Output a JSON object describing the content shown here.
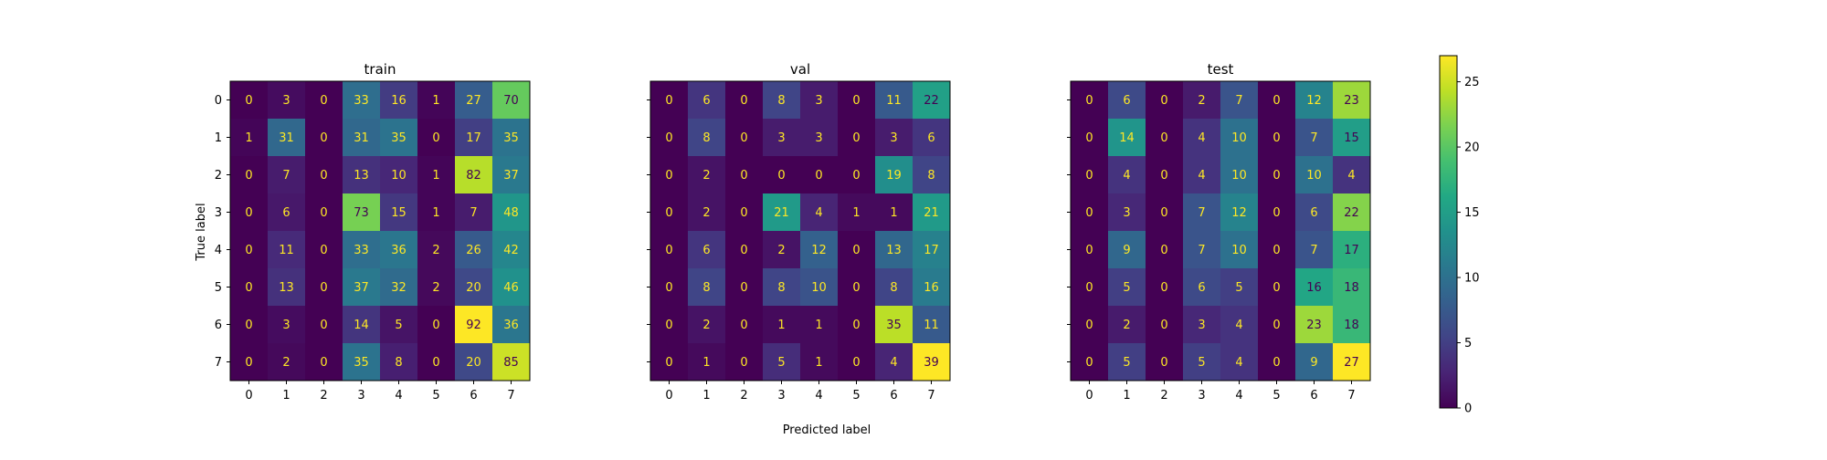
{
  "chart_data": [
    {
      "type": "heatmap",
      "title": "train",
      "xlabel": "Predicted label",
      "ylabel": "True label",
      "x_ticks": [
        "0",
        "1",
        "2",
        "3",
        "4",
        "5",
        "6",
        "7"
      ],
      "y_ticks": [
        "0",
        "1",
        "2",
        "3",
        "4",
        "5",
        "6",
        "7"
      ],
      "values": [
        [
          0,
          3,
          0,
          33,
          16,
          1,
          27,
          70
        ],
        [
          1,
          31,
          0,
          31,
          35,
          0,
          17,
          35
        ],
        [
          0,
          7,
          0,
          13,
          10,
          1,
          82,
          37
        ],
        [
          0,
          6,
          0,
          73,
          15,
          1,
          7,
          48
        ],
        [
          0,
          11,
          0,
          33,
          36,
          2,
          26,
          42
        ],
        [
          0,
          13,
          0,
          37,
          32,
          2,
          20,
          46
        ],
        [
          0,
          3,
          0,
          14,
          5,
          0,
          92,
          36
        ],
        [
          0,
          2,
          0,
          35,
          8,
          0,
          20,
          85
        ]
      ]
    },
    {
      "type": "heatmap",
      "title": "val",
      "xlabel": "Predicted label",
      "ylabel": "True label",
      "x_ticks": [
        "0",
        "1",
        "2",
        "3",
        "4",
        "5",
        "6",
        "7"
      ],
      "y_ticks": [
        "0",
        "1",
        "2",
        "3",
        "4",
        "5",
        "6",
        "7"
      ],
      "values": [
        [
          0,
          6,
          0,
          8,
          3,
          0,
          11,
          22
        ],
        [
          0,
          8,
          0,
          3,
          3,
          0,
          3,
          6
        ],
        [
          0,
          2,
          0,
          0,
          0,
          0,
          19,
          8
        ],
        [
          0,
          2,
          0,
          21,
          4,
          1,
          1,
          21
        ],
        [
          0,
          6,
          0,
          2,
          12,
          0,
          13,
          17
        ],
        [
          0,
          8,
          0,
          8,
          10,
          0,
          8,
          16
        ],
        [
          0,
          2,
          0,
          1,
          1,
          0,
          35,
          11
        ],
        [
          0,
          1,
          0,
          5,
          1,
          0,
          4,
          39
        ]
      ]
    },
    {
      "type": "heatmap",
      "title": "test",
      "xlabel": "Predicted label",
      "ylabel": "True label",
      "x_ticks": [
        "0",
        "1",
        "2",
        "3",
        "4",
        "5",
        "6",
        "7"
      ],
      "y_ticks": [
        "0",
        "1",
        "2",
        "3",
        "4",
        "5",
        "6",
        "7"
      ],
      "values": [
        [
          0,
          6,
          0,
          2,
          7,
          0,
          12,
          23
        ],
        [
          0,
          14,
          0,
          4,
          10,
          0,
          7,
          15
        ],
        [
          0,
          4,
          0,
          4,
          10,
          0,
          10,
          4
        ],
        [
          0,
          3,
          0,
          7,
          12,
          0,
          6,
          22
        ],
        [
          0,
          9,
          0,
          7,
          10,
          0,
          7,
          17
        ],
        [
          0,
          5,
          0,
          6,
          5,
          0,
          16,
          18
        ],
        [
          0,
          2,
          0,
          3,
          4,
          0,
          23,
          18
        ],
        [
          0,
          5,
          0,
          5,
          4,
          0,
          9,
          27
        ]
      ]
    }
  ],
  "colorbar": {
    "ticks": [
      0,
      5,
      10,
      15,
      20,
      25
    ],
    "range": [
      0,
      27
    ],
    "colormap": "viridis"
  },
  "figure": {
    "xlabel": "Predicted label",
    "ylabel": "True label"
  },
  "colors": {
    "text_light": "#fde725",
    "text_dark": "#440154",
    "axis": "#000000"
  }
}
